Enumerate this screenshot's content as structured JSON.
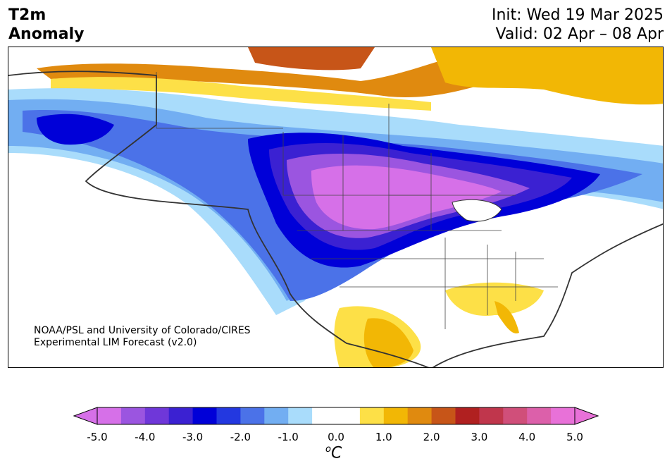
{
  "header": {
    "title_line1": "T2m",
    "title_line2": "Anomaly",
    "init": "Init: Wed 19 Mar 2025",
    "valid": "Valid: 02 Apr – 08 Apr"
  },
  "credit": {
    "line1": "NOAA/PSL and University of Colorado/CIRES",
    "line2": "Experimental LIM Forecast (v2.0)"
  },
  "colorbar": {
    "ticks": [
      "-5.0",
      "-4.0",
      "-3.0",
      "-2.0",
      "-1.0",
      "0.0",
      "1.0",
      "2.0",
      "3.0",
      "4.0",
      "5.0"
    ],
    "unit_sup": "o",
    "unit": "C",
    "colors": [
      "#d670e8",
      "#9b55e0",
      "#6f37d9",
      "#3b21d2",
      "#0000d8",
      "#2338e0",
      "#4b72e8",
      "#72aef2",
      "#a9dcfb",
      "#ffffff",
      "#ffffff",
      "#fde047",
      "#f2b705",
      "#e08a0f",
      "#c75518",
      "#b02020",
      "#c0364c",
      "#d04f7a",
      "#dc60aa",
      "#e871d8"
    ]
  },
  "map_regions": {
    "coldest": "#d670e8",
    "cold_core": "#9b55e0",
    "cold_ring": "#3b21d2",
    "cold_blue": "#0000d8",
    "mid_blue": "#4b72e8",
    "light_blue": "#72aef2",
    "pale_blue": "#a9dcfb",
    "warm_yellow": "#fde047",
    "warm_gold": "#f2b705",
    "warm_orange": "#e08a0f",
    "warm_rust": "#c75518"
  }
}
